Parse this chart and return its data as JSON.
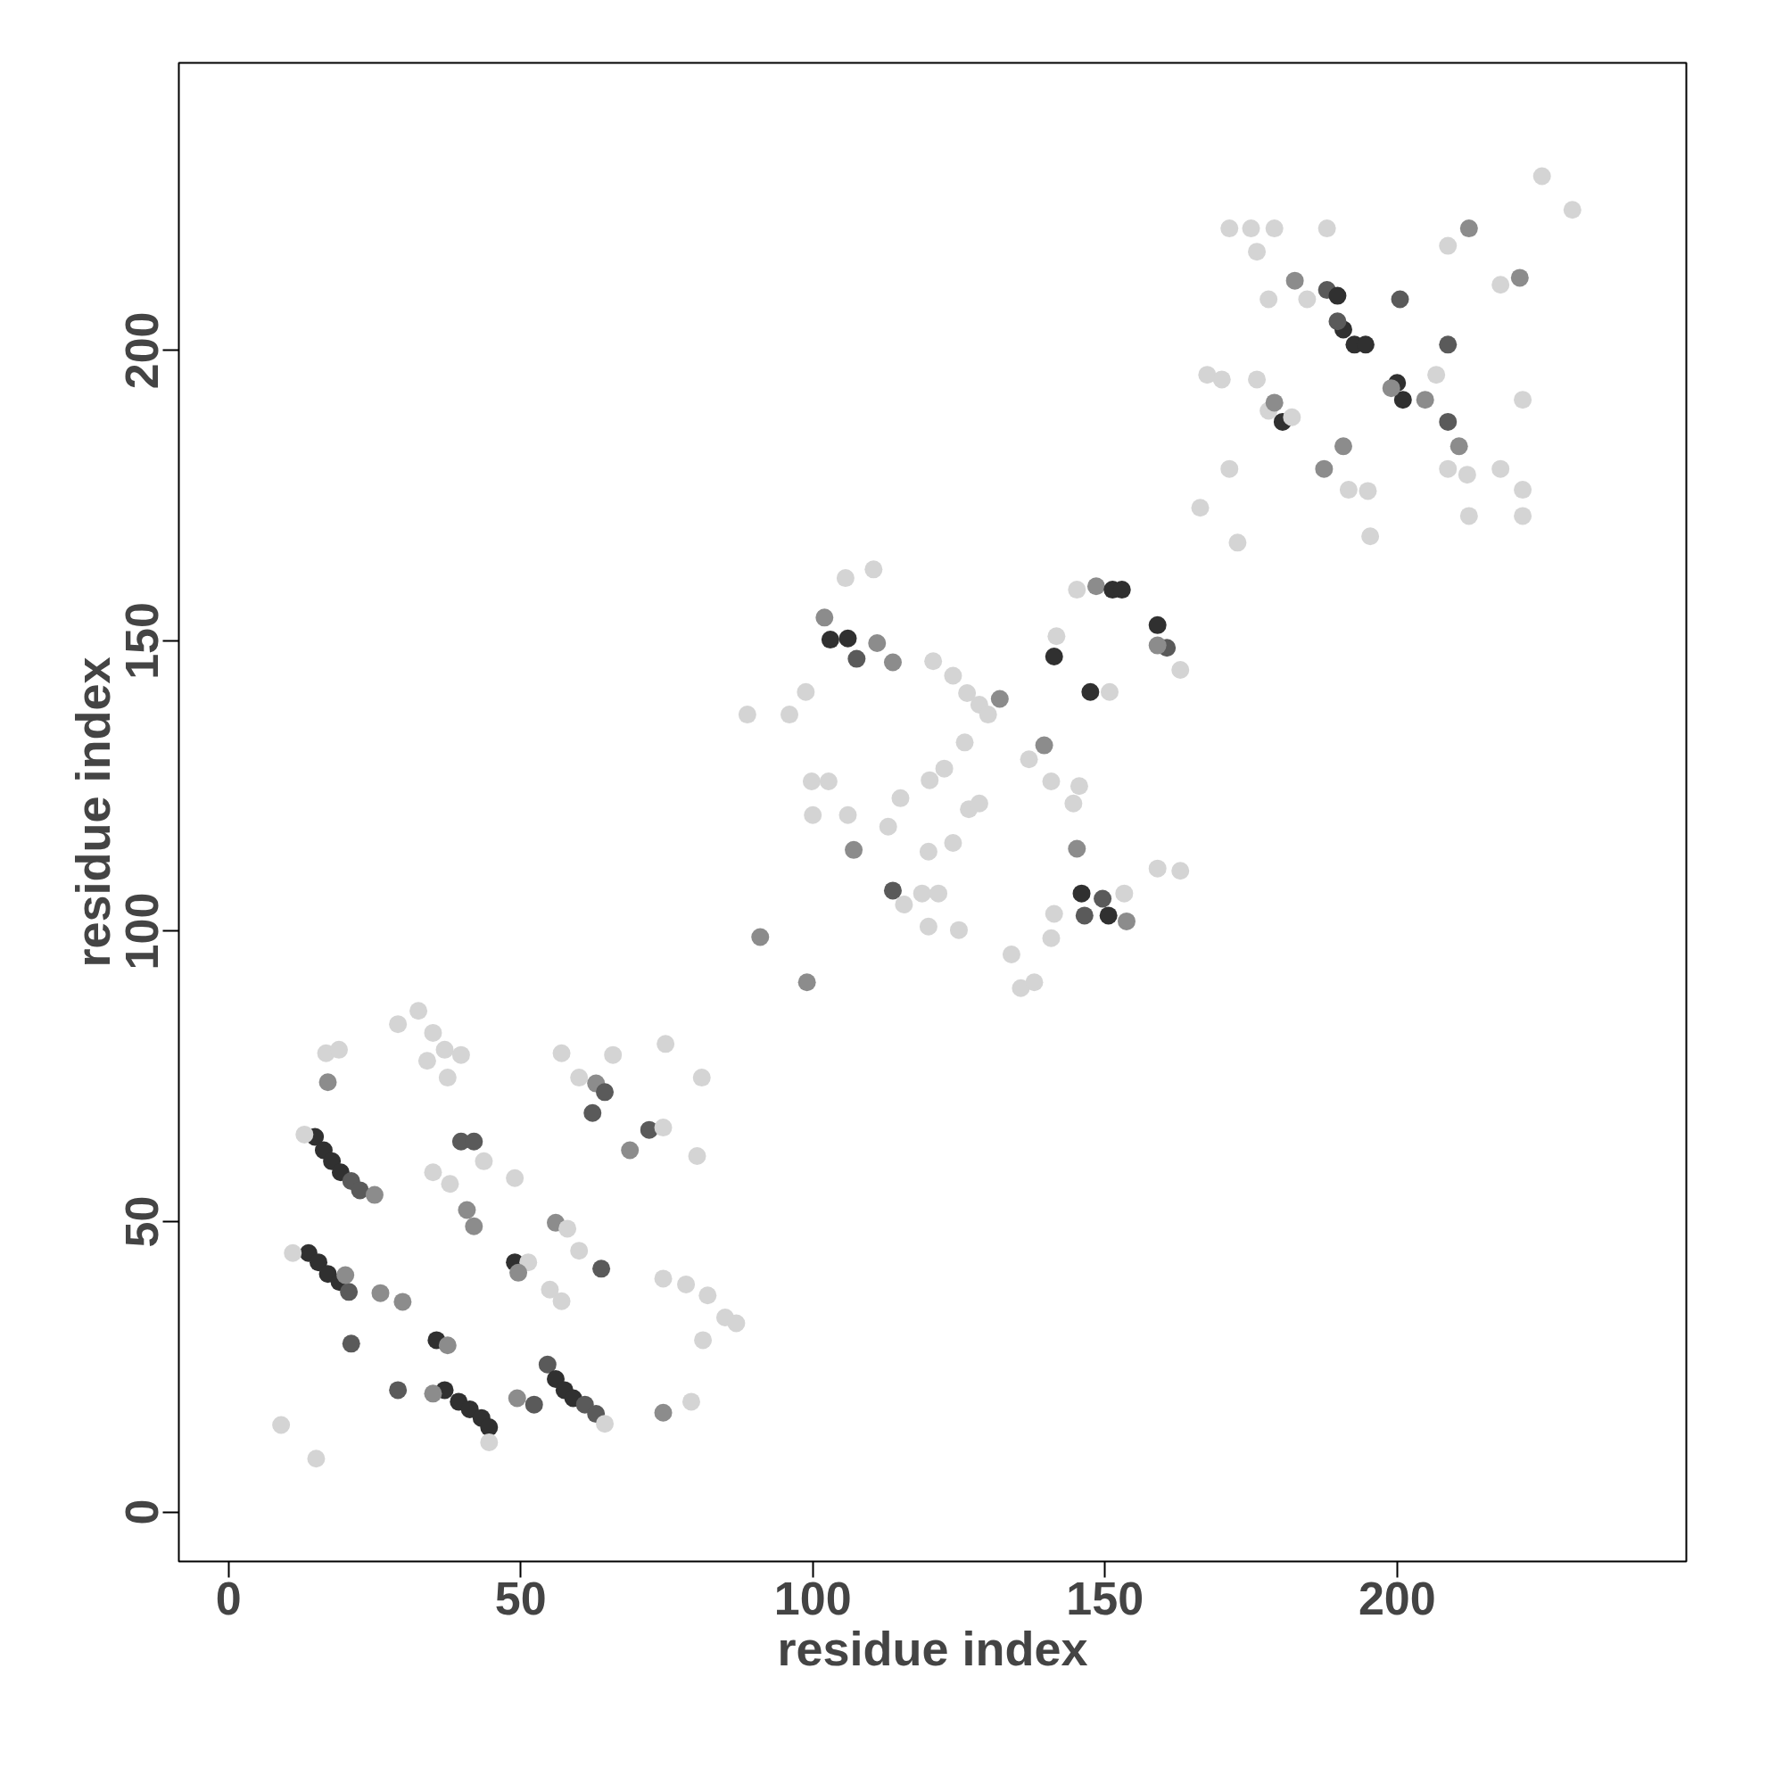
{
  "chart_data": {
    "type": "scatter",
    "xlabel": "residue index",
    "ylabel": "residue index",
    "xlim": [
      -8.5,
      249.5
    ],
    "ylim": [
      -8.5,
      249.5
    ],
    "xticks": [
      0,
      50,
      100,
      150,
      200
    ],
    "yticks": [
      0,
      50,
      100,
      150,
      200
    ],
    "marker": "circle",
    "series": [
      {
        "x": [
          9,
          15,
          21,
          29,
          13.7,
          15.4,
          17,
          19,
          20.6,
          11,
          20,
          14.8,
          16.3,
          17.7,
          19.2,
          21,
          22.5,
          25,
          13,
          17,
          16.7,
          18.9,
          29,
          32.5,
          35,
          37,
          39.8,
          37.5,
          34,
          39.8,
          42,
          35,
          37.9,
          43.7,
          49,
          40.8,
          42,
          26,
          29.8,
          35.6,
          37.5,
          37,
          39.4,
          41.3,
          43.3,
          44.6,
          44.6,
          35,
          49,
          51.3,
          49.6,
          54.6,
          56,
          57.5,
          59,
          61,
          62.9,
          64.4,
          49.4,
          52.3,
          56,
          58,
          60,
          63.8,
          55,
          57,
          57,
          60,
          62.9,
          64.4,
          62.3,
          65.8,
          68.7,
          72,
          74.4,
          74.8,
          80.2,
          81,
          74.4,
          78.3,
          82,
          85,
          86.9,
          81.2,
          74.4,
          79.2,
          91,
          99,
          88.8,
          96,
          98.8,
          102,
          103,
          106,
          107.5,
          111,
          105.6,
          110.4,
          113.7,
          99.8,
          102.7,
          100,
          106,
          107,
          112.9,
          115,
          113.7,
          115.6,
          118.7,
          121.5,
          119.8,
          125,
          119.8,
          124,
          120,
          122.5,
          126.7,
          128.5,
          120.6,
          124,
          126.4,
          128.5,
          132,
          126,
          130,
          134,
          135.6,
          137.9,
          140.8,
          137,
          139.6,
          140.8,
          144.6,
          145.6,
          145.2,
          148.5,
          151.3,
          152.9,
          141.3,
          141.7,
          147.5,
          150.8,
          145.2,
          146,
          149.6,
          150.6,
          153.7,
          146.5,
          153.3,
          141.3,
          159,
          160.6,
          162.9,
          159,
          159,
          162.9,
          166.3,
          167.5,
          170,
          172.7,
          171.3,
          171.3,
          175,
          176,
          178,
          179,
          176,
          178,
          180.4,
          179,
          182,
          182.5,
          184.6,
          188,
          189.8,
          190.8,
          192.7,
          194.6,
          189.8,
          188,
          187.5,
          190.8,
          191.7,
          195,
          195.4,
          200.5,
          200,
          201,
          199,
          204.8,
          208.7,
          208.7,
          206.7,
          210.6,
          208.7,
          212,
          212.3,
          212.3,
          208.7,
          217.7,
          221,
          221.5,
          217.7,
          221.5,
          221.5,
          224.8,
          230
        ],
        "values": [
          15,
          9.2,
          29,
          21,
          44.6,
          43,
          41,
          39.6,
          37.9,
          44.6,
          40.8,
          64.6,
          62.3,
          60.4,
          58.5,
          57,
          55.4,
          54.6,
          65,
          74,
          79,
          79.6,
          84,
          86.3,
          82.5,
          79.6,
          78.7,
          74.8,
          77.7,
          63.8,
          63.8,
          58.5,
          56.5,
          60.4,
          57.5,
          52,
          49.2,
          37.7,
          36.2,
          29.6,
          28.7,
          21,
          19,
          17.7,
          16.2,
          14.6,
          12,
          20.4,
          43,
          43,
          41.2,
          25.4,
          22.9,
          21,
          19.6,
          18.5,
          16.9,
          15.2,
          19.6,
          18.5,
          49.8,
          48.8,
          45,
          41.9,
          38.3,
          36.3,
          79,
          74.8,
          73.8,
          72.3,
          68.7,
          78.7,
          62.3,
          65.8,
          66.2,
          80.6,
          61.3,
          74.8,
          40.2,
          39.2,
          37.3,
          33.5,
          32.5,
          29.6,
          17.1,
          19,
          99,
          91.2,
          137.3,
          137.3,
          141.2,
          154,
          150.2,
          150.4,
          146.9,
          149.6,
          160.8,
          162.3,
          146.3,
          125.8,
          125.8,
          120,
          120,
          114,
          118,
          122.9,
          107,
          104.6,
          106.5,
          106.5,
          100.8,
          100.2,
          113.7,
          115.2,
          126,
          128,
          121,
          122,
          146.5,
          144,
          141,
          139,
          140,
          132.5,
          137.3,
          96,
          90.2,
          91.2,
          98.8,
          129.6,
          132,
          125.8,
          122,
          125,
          158.8,
          159.4,
          158.8,
          158.8,
          147.3,
          150.8,
          141.2,
          141.2,
          114.2,
          106.5,
          105.6,
          102.7,
          101.7,
          102.7,
          106.5,
          103,
          152.7,
          148.8,
          145,
          149.2,
          110.8,
          110.4,
          172.9,
          195.8,
          195,
          166.9,
          179.6,
          221,
          221,
          217,
          208.8,
          221,
          195,
          189.6,
          187.7,
          191,
          188.5,
          212,
          208.8,
          210.4,
          209.4,
          203.6,
          201,
          201,
          205,
          221,
          179.6,
          183.5,
          176,
          175.8,
          168,
          208.8,
          194.4,
          191.5,
          193.5,
          191.5,
          201,
          187.7,
          195.8,
          183.5,
          179.6,
          178.6,
          171.5,
          221,
          218,
          211.3,
          212.5,
          191.5,
          179.6,
          176,
          171.5,
          230,
          224.2
        ],
        "colors": [
          "#d4d4d4",
          "#d4d4d4",
          "#5a5a5a",
          "#5a5a5a",
          "#303030",
          "#303030",
          "#303030",
          "#303030",
          "#5a5a5a",
          "#d4d4d4",
          "#8c8c8c",
          "#303030",
          "#303030",
          "#303030",
          "#303030",
          "#5a5a5a",
          "#5a5a5a",
          "#8c8c8c",
          "#d4d4d4",
          "#8c8c8c",
          "#d4d4d4",
          "#d4d4d4",
          "#d4d4d4",
          "#d4d4d4",
          "#d4d4d4",
          "#d4d4d4",
          "#d4d4d4",
          "#d4d4d4",
          "#d4d4d4",
          "#5a5a5a",
          "#5a5a5a",
          "#d4d4d4",
          "#d4d4d4",
          "#d4d4d4",
          "#d4d4d4",
          "#8c8c8c",
          "#8c8c8c",
          "#8c8c8c",
          "#8c8c8c",
          "#303030",
          "#8c8c8c",
          "#303030",
          "#303030",
          "#303030",
          "#303030",
          "#303030",
          "#d4d4d4",
          "#8c8c8c",
          "#303030",
          "#d4d4d4",
          "#8c8c8c",
          "#5a5a5a",
          "#303030",
          "#303030",
          "#303030",
          "#5a5a5a",
          "#5a5a5a",
          "#d4d4d4",
          "#8c8c8c",
          "#5a5a5a",
          "#8c8c8c",
          "#d4d4d4",
          "#d4d4d4",
          "#5a5a5a",
          "#d4d4d4",
          "#d4d4d4",
          "#d4d4d4",
          "#d4d4d4",
          "#8c8c8c",
          "#5a5a5a",
          "#5a5a5a",
          "#d4d4d4",
          "#8c8c8c",
          "#5a5a5a",
          "#d4d4d4",
          "#d4d4d4",
          "#d4d4d4",
          "#d4d4d4",
          "#d4d4d4",
          "#d4d4d4",
          "#d4d4d4",
          "#d4d4d4",
          "#d4d4d4",
          "#d4d4d4",
          "#8c8c8c",
          "#d4d4d4",
          "#8c8c8c",
          "#8c8c8c",
          "#d4d4d4",
          "#d4d4d4",
          "#d4d4d4",
          "#8c8c8c",
          "#303030",
          "#303030",
          "#5a5a5a",
          "#8c8c8c",
          "#d4d4d4",
          "#d4d4d4",
          "#8c8c8c",
          "#d4d4d4",
          "#d4d4d4",
          "#d4d4d4",
          "#d4d4d4",
          "#8c8c8c",
          "#d4d4d4",
          "#d4d4d4",
          "#5a5a5a",
          "#d4d4d4",
          "#d4d4d4",
          "#d4d4d4",
          "#d4d4d4",
          "#d4d4d4",
          "#d4d4d4",
          "#d4d4d4",
          "#d4d4d4",
          "#d4d4d4",
          "#d4d4d4",
          "#d4d4d4",
          "#d4d4d4",
          "#d4d4d4",
          "#d4d4d4",
          "#d4d4d4",
          "#8c8c8c",
          "#d4d4d4",
          "#d4d4d4",
          "#d4d4d4",
          "#d4d4d4",
          "#d4d4d4",
          "#d4d4d4",
          "#d4d4d4",
          "#8c8c8c",
          "#d4d4d4",
          "#d4d4d4",
          "#d4d4d4",
          "#d4d4d4",
          "#8c8c8c",
          "#303030",
          "#303030",
          "#303030",
          "#d4d4d4",
          "#303030",
          "#d4d4d4",
          "#8c8c8c",
          "#303030",
          "#5a5a5a",
          "#303030",
          "#8c8c8c",
          "#5a5a5a",
          "#d4d4d4",
          "#d4d4d4",
          "#303030",
          "#5a5a5a",
          "#d4d4d4",
          "#8c8c8c",
          "#d4d4d4",
          "#d4d4d4",
          "#d4d4d4",
          "#d4d4d4",
          "#d4d4d4",
          "#d4d4d4",
          "#d4d4d4",
          "#d4d4d4",
          "#d4d4d4",
          "#d4d4d4",
          "#d4d4d4",
          "#d4d4d4",
          "#d4d4d4",
          "#d4d4d4",
          "#303030",
          "#8c8c8c",
          "#d4d4d4",
          "#8c8c8c",
          "#d4d4d4",
          "#5a5a5a",
          "#303030",
          "#303030",
          "#303030",
          "#303030",
          "#5a5a5a",
          "#d4d4d4",
          "#8c8c8c",
          "#8c8c8c",
          "#d4d4d4",
          "#d4d4d4",
          "#d4d4d4",
          "#5a5a5a",
          "#303030",
          "#303030",
          "#8c8c8c",
          "#8c8c8c",
          "#5a5a5a",
          "#5a5a5a",
          "#d4d4d4",
          "#8c8c8c",
          "#d4d4d4",
          "#d4d4d4",
          "#d4d4d4",
          "#8c8c8c",
          "#d4d4d4",
          "#d4d4d4",
          "#8c8c8c",
          "#d4d4d4",
          "#d4d4d4",
          "#d4d4d4",
          "#d4d4d4",
          "#d4d4d4",
          "#d4d4d4"
        ]
      }
    ]
  }
}
